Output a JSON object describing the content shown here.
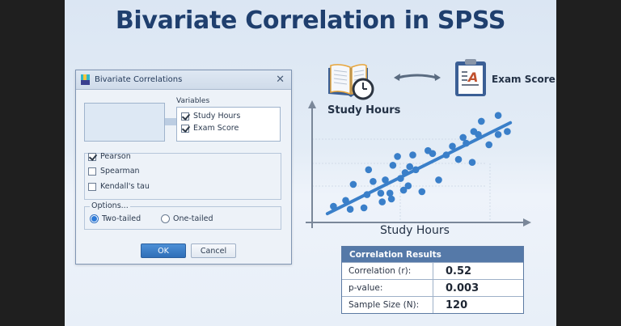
{
  "slide": {
    "title": "Bivariate Correlation in SPSS"
  },
  "dialog": {
    "title": "Bivariate Correlations",
    "close_glyph": "✕",
    "variables_label": "Variables",
    "variables": [
      {
        "label": "Study Hours",
        "checked": true
      },
      {
        "label": "Exam Score",
        "checked": true
      }
    ],
    "coefficients": [
      {
        "label": "Pearson",
        "checked": true
      },
      {
        "label": "Spearman",
        "checked": false
      },
      {
        "label": "Kendall's tau",
        "checked": false
      }
    ],
    "options_label": "Options...",
    "test_of_significance": [
      {
        "label": "Two-tailed",
        "selected": true
      },
      {
        "label": "One-tailed",
        "selected": false
      }
    ],
    "ok_label": "OK",
    "cancel_label": "Cancel"
  },
  "illustration": {
    "left_label": "Study Hours",
    "right_label": "Exam Score",
    "left_icon": "book-clock-icon",
    "right_icon": "clipboard-grade-a-icon",
    "link_icon": "double-arrow-icon",
    "x_axis_label": "Study Hours"
  },
  "colors": {
    "title": "#1f3f6e",
    "point": "#3a7fc9",
    "trend_line": "#3a7fc9",
    "ok_button": "#3a7ec8",
    "results_header": "#5579a8"
  },
  "chart_data": {
    "type": "scatter",
    "title": "",
    "xlabel": "Study Hours",
    "ylabel": "",
    "grid": true,
    "legend": null,
    "points": [
      [
        14,
        11
      ],
      [
        22,
        15
      ],
      [
        25,
        9
      ],
      [
        27,
        26
      ],
      [
        34,
        10
      ],
      [
        36,
        19
      ],
      [
        37,
        36
      ],
      [
        40,
        28
      ],
      [
        45,
        20
      ],
      [
        46,
        14
      ],
      [
        48,
        29
      ],
      [
        51,
        20
      ],
      [
        52,
        16
      ],
      [
        53,
        39
      ],
      [
        56,
        45
      ],
      [
        58,
        30
      ],
      [
        60,
        22
      ],
      [
        61,
        34
      ],
      [
        63,
        25
      ],
      [
        64,
        38
      ],
      [
        66,
        46
      ],
      [
        68,
        36
      ],
      [
        72,
        21
      ],
      [
        76,
        49
      ],
      [
        79,
        47
      ],
      [
        83,
        29
      ],
      [
        88,
        46
      ],
      [
        92,
        52
      ],
      [
        96,
        43
      ],
      [
        99,
        58
      ],
      [
        101,
        54
      ],
      [
        105,
        41
      ],
      [
        106,
        62
      ],
      [
        109,
        60
      ],
      [
        111,
        69
      ],
      [
        116,
        53
      ],
      [
        122,
        73
      ],
      [
        122,
        60
      ],
      [
        128,
        62
      ]
    ],
    "trend_line": {
      "x": [
        10,
        130
      ],
      "y": [
        6,
        68
      ]
    },
    "xlim": [
      0,
      140
    ],
    "ylim": [
      0,
      80
    ]
  },
  "results": {
    "header": "Correlation Results",
    "rows": [
      {
        "label": "Correlation  (r):",
        "value": "0.52"
      },
      {
        "label": "p-value:",
        "value": "0.003"
      },
      {
        "label": "Sample Size (N):",
        "value": "120"
      }
    ]
  }
}
